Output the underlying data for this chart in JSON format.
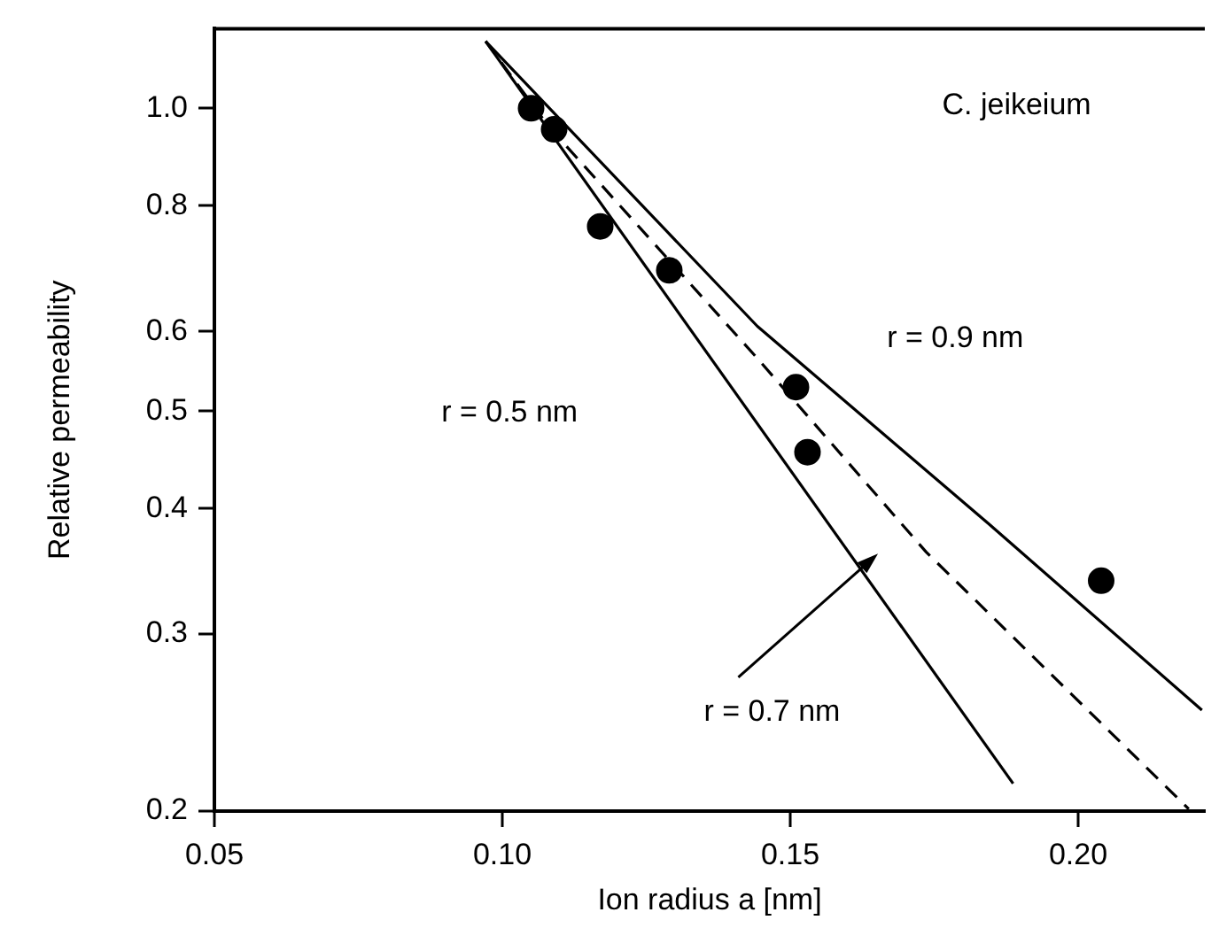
{
  "chart_data": {
    "type": "scatter",
    "title": "C. jeikeium",
    "xlabel": "Ion radius a [nm]",
    "ylabel": "Relative permeability",
    "xlim": [
      0.05,
      0.222
    ],
    "ylim": [
      0.2,
      1.2
    ],
    "xticks": [
      0.05,
      {
        "value": 0.1,
        "label": "0.10"
      },
      0.15,
      {
        "value": 0.2,
        "label": "0.20"
      }
    ],
    "yticks": [
      0.2,
      0.3,
      0.4,
      0.5,
      0.6,
      0.8,
      {
        "value": 1,
        "label": "1.0"
      }
    ],
    "log": "y",
    "grid": false,
    "legend": false,
    "series": [
      {
        "marker": "circle",
        "color": "#000000",
        "x": [
          0.105,
          0.109,
          0.117,
          0.129,
          0.151,
          0.153,
          0.204
        ],
        "values": [
          1.0,
          0.953,
          0.763,
          0.69,
          0.528,
          0.455,
          0.339
        ]
      },
      {
        "type": "line",
        "line_style": "solid",
        "marker": "none",
        "color": "#000000",
        "x": [
          0.0971,
          0.1887
        ],
        "values": [
          1.166,
          0.213
        ]
      },
      {
        "type": "line",
        "line_style": "dashed",
        "marker": "none",
        "color": "#000000",
        "x": [
          0.0971,
          0.108,
          0.1443,
          0.1736,
          0.2192
        ],
        "values": [
          1.166,
          0.96,
          0.564,
          0.362,
          0.201
        ]
      },
      {
        "type": "line",
        "line_style": "solid",
        "marker": "none",
        "color": "#000000",
        "x": [
          0.0971,
          0.1443,
          0.1845,
          0.2215
        ],
        "values": [
          1.166,
          0.607,
          0.386,
          0.252
        ]
      }
    ],
    "annotations": [
      "r = 0.5 nm",
      "r = 0.9 nm",
      "r = 0.7 nm"
    ]
  }
}
